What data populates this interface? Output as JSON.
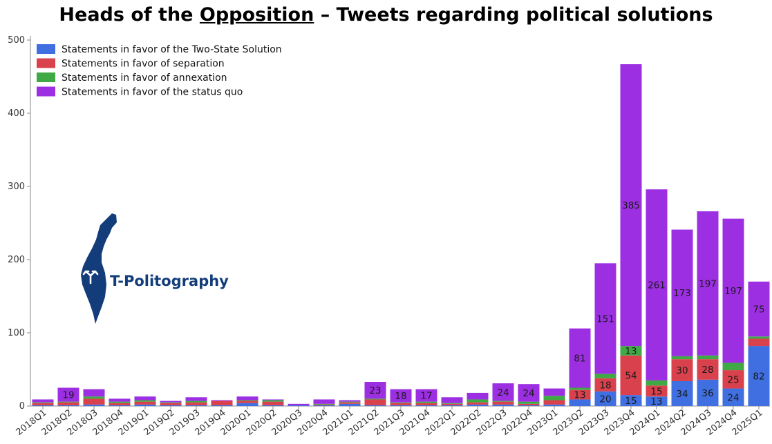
{
  "title": {
    "prefix": "Heads of the ",
    "underlined": "Opposition",
    "suffix": " – Tweets regarding political solutions"
  },
  "logo": {
    "text": "T-Politography",
    "icon": "israel-map-with-split-arrow-icon"
  },
  "colors": {
    "two_state": "#3f6fe0",
    "separation": "#d9414d",
    "annexation": "#3faa45",
    "status_quo": "#9d2fe3",
    "axis": "#8a8a8a",
    "background": "#ffffff"
  },
  "chart_data": {
    "type": "bar",
    "stacked": true,
    "title": "Heads of the Opposition – Tweets regarding political solutions",
    "ylim": [
      0,
      500
    ],
    "yticks": [
      0,
      100,
      200,
      300,
      400,
      500
    ],
    "grid": false,
    "legend_position": "top-left",
    "categories": [
      "2018Q1",
      "2018Q2",
      "2018Q3",
      "2018Q4",
      "2019Q1",
      "2019Q2",
      "2019Q3",
      "2019Q4",
      "2020Q1",
      "2020Q2",
      "2020Q3",
      "2020Q4",
      "2021Q1",
      "2021Q2",
      "2021Q3",
      "2021Q4",
      "2022Q1",
      "2022Q2",
      "2022Q3",
      "2022Q4",
      "2023Q1",
      "2023Q2",
      "2023Q3",
      "2023Q4",
      "2024Q1",
      "2024Q2",
      "2024Q3",
      "2024Q4",
      "2025Q1"
    ],
    "series": [
      {
        "name": "Statements in favor of the Two-State Solution",
        "key": "two_state",
        "values": [
          1,
          1,
          2,
          1,
          2,
          1,
          1,
          1,
          4,
          1,
          1,
          1,
          3,
          1,
          1,
          1,
          1,
          2,
          2,
          1,
          2,
          9,
          20,
          15,
          13,
          34,
          36,
          24,
          82
        ]
      },
      {
        "name": "Statements in favor of separation",
        "key": "separation",
        "values": [
          3,
          4,
          8,
          3,
          4,
          3,
          4,
          6,
          3,
          5,
          0,
          1,
          2,
          8,
          3,
          3,
          2,
          3,
          4,
          2,
          6,
          13,
          18,
          54,
          15,
          30,
          28,
          25,
          10
        ]
      },
      {
        "name": "Statements in favor of annexation",
        "key": "annexation",
        "values": [
          1,
          1,
          3,
          2,
          2,
          1,
          2,
          0,
          1,
          2,
          0,
          1,
          1,
          1,
          1,
          2,
          1,
          4,
          1,
          3,
          6,
          3,
          6,
          13,
          7,
          4,
          5,
          10,
          3
        ]
      },
      {
        "name": "Statements in favor of the status quo",
        "key": "status_quo",
        "values": [
          4,
          19,
          10,
          4,
          5,
          2,
          5,
          1,
          5,
          1,
          2,
          6,
          2,
          23,
          18,
          17,
          8,
          9,
          24,
          24,
          10,
          81,
          151,
          385,
          261,
          173,
          197,
          197,
          75
        ]
      }
    ],
    "data_labels": [
      {
        "category": "2018Q2",
        "series": "status_quo",
        "text": "19"
      },
      {
        "category": "2021Q2",
        "series": "status_quo",
        "text": "23"
      },
      {
        "category": "2021Q3",
        "series": "status_quo",
        "text": "18"
      },
      {
        "category": "2021Q4",
        "series": "status_quo",
        "text": "17"
      },
      {
        "category": "2022Q3",
        "series": "status_quo",
        "text": "24"
      },
      {
        "category": "2022Q4",
        "series": "status_quo",
        "text": "24"
      },
      {
        "category": "2023Q2",
        "series": "separation",
        "text": "13"
      },
      {
        "category": "2023Q2",
        "series": "status_quo",
        "text": "81"
      },
      {
        "category": "2023Q3",
        "series": "two_state",
        "text": "20"
      },
      {
        "category": "2023Q3",
        "series": "separation",
        "text": "18"
      },
      {
        "category": "2023Q3",
        "series": "status_quo",
        "text": "151"
      },
      {
        "category": "2023Q4",
        "series": "two_state",
        "text": "15"
      },
      {
        "category": "2023Q4",
        "series": "separation",
        "text": "54"
      },
      {
        "category": "2023Q4",
        "series": "annexation",
        "text": "13"
      },
      {
        "category": "2023Q4",
        "series": "status_quo",
        "text": "385"
      },
      {
        "category": "2024Q1",
        "series": "two_state",
        "text": "13"
      },
      {
        "category": "2024Q1",
        "series": "separation",
        "text": "15"
      },
      {
        "category": "2024Q1",
        "series": "status_quo",
        "text": "261"
      },
      {
        "category": "2024Q2",
        "series": "two_state",
        "text": "34"
      },
      {
        "category": "2024Q2",
        "series": "separation",
        "text": "30"
      },
      {
        "category": "2024Q2",
        "series": "status_quo",
        "text": "173"
      },
      {
        "category": "2024Q3",
        "series": "two_state",
        "text": "36"
      },
      {
        "category": "2024Q3",
        "series": "separation",
        "text": "28"
      },
      {
        "category": "2024Q3",
        "series": "status_quo",
        "text": "197"
      },
      {
        "category": "2024Q4",
        "series": "two_state",
        "text": "24"
      },
      {
        "category": "2024Q4",
        "series": "separation",
        "text": "25"
      },
      {
        "category": "2024Q4",
        "series": "status_quo",
        "text": "197"
      },
      {
        "category": "2025Q1",
        "series": "two_state",
        "text": "82"
      },
      {
        "category": "2025Q1",
        "series": "status_quo",
        "text": "75"
      }
    ]
  }
}
